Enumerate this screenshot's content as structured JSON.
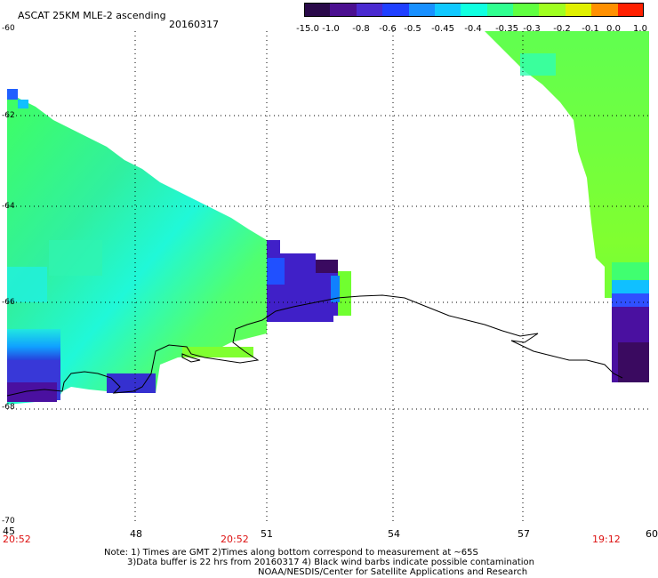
{
  "header": {
    "title": "ASCAT 25KM MLE-2 ascending",
    "date": "20160317"
  },
  "colorbar": {
    "labels": [
      "-15.0",
      "-1.0",
      "-0.8",
      "-0.6",
      "-0.5",
      "-0.45",
      "-0.4",
      "-0.35",
      "-0.3",
      "-0.2",
      "-0.1",
      "0.0",
      "1.0"
    ],
    "colors": [
      "#2a0a4a",
      "#4b1090",
      "#4a2ad0",
      "#2040ff",
      "#1890ff",
      "#10c8ff",
      "#10ffe0",
      "#30ff90",
      "#60ff40",
      "#a0ff20",
      "#e0f000",
      "#ff9000",
      "#ff2000"
    ]
  },
  "axes": {
    "x_ticks": [
      "45",
      "48",
      "51",
      "54",
      "57",
      "60"
    ],
    "y_ticks": [
      "-60",
      "-62",
      "-64",
      "-66",
      "-68",
      "-70"
    ],
    "x_range": [
      45,
      60
    ],
    "y_range": [
      -60,
      -70
    ]
  },
  "times": [
    "20:52",
    "20:52",
    "19:12"
  ],
  "footer": {
    "note1": "Note: 1) Times are GMT 2)Times along bottom correspond to measurement at ~65S",
    "note2": "3)Data buffer is 22 hrs from 20160317 4) Black wind barbs indicate possible contamination",
    "credit": "NOAA/NESDIS/Center for Satellite Applications and Research"
  }
}
